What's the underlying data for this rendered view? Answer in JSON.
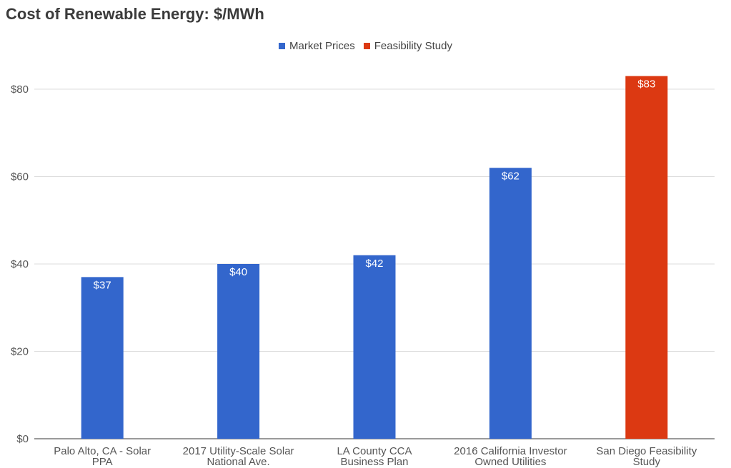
{
  "chart_data": {
    "type": "bar",
    "title": "Cost of Renewable Energy: $/MWh",
    "xlabel": "",
    "ylabel": "",
    "ylim": [
      0,
      90
    ],
    "yticks": [
      0,
      20,
      40,
      60,
      80
    ],
    "ytick_labels": [
      "$0",
      "$20",
      "$40",
      "$60",
      "$80"
    ],
    "grid": true,
    "legend_position": "top-center",
    "categories": [
      [
        "Palo Alto, CA - Solar",
        "PPA"
      ],
      [
        "2017 Utility-Scale Solar",
        "National Ave."
      ],
      [
        "LA County CCA",
        "Business Plan"
      ],
      [
        "2016 California Investor",
        "Owned Utilities"
      ],
      [
        "San Diego Feasibility",
        "Study"
      ]
    ],
    "series": [
      {
        "name": "Market Prices",
        "color": "#3366cc",
        "values": [
          37,
          40,
          42,
          62,
          null
        ]
      },
      {
        "name": "Feasibility Study",
        "color": "#dc3912",
        "values": [
          null,
          null,
          null,
          null,
          83
        ]
      }
    ],
    "data_labels": [
      "$37",
      "$40",
      "$42",
      "$62",
      "$83"
    ]
  }
}
